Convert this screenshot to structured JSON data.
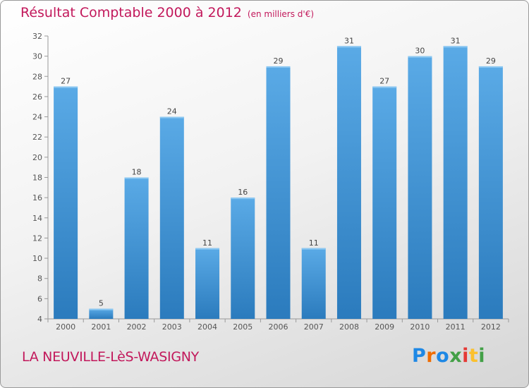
{
  "title": "Résultat Comptable 2000 à 2012",
  "subtitle": "(en milliers d'€)",
  "location": "LA NEUVILLE-LèS-WASIGNY",
  "logo": [
    "P",
    "r",
    "o",
    "x",
    "i",
    "t",
    "i"
  ],
  "colors": {
    "bar_light": "#5aaae6",
    "bar_dark": "#2b7bbd",
    "title": "#c2185b",
    "logo": [
      "#1e88e5",
      "#ef6c00",
      "#1e88e5",
      "#43a047",
      "#e53935",
      "#fbc02d",
      "#43a047"
    ]
  },
  "chart_data": {
    "type": "bar",
    "categories": [
      "2000",
      "2001",
      "2002",
      "2003",
      "2004",
      "2005",
      "2006",
      "2007",
      "2008",
      "2009",
      "2010",
      "2011",
      "2012"
    ],
    "values": [
      27,
      5,
      18,
      24,
      11,
      16,
      29,
      11,
      31,
      27,
      30,
      31,
      29
    ],
    "ylim": [
      4,
      32
    ],
    "yticks": [
      4,
      6,
      8,
      10,
      12,
      14,
      16,
      18,
      20,
      22,
      24,
      26,
      28,
      30,
      32
    ],
    "grid": false,
    "data_labels": true
  }
}
